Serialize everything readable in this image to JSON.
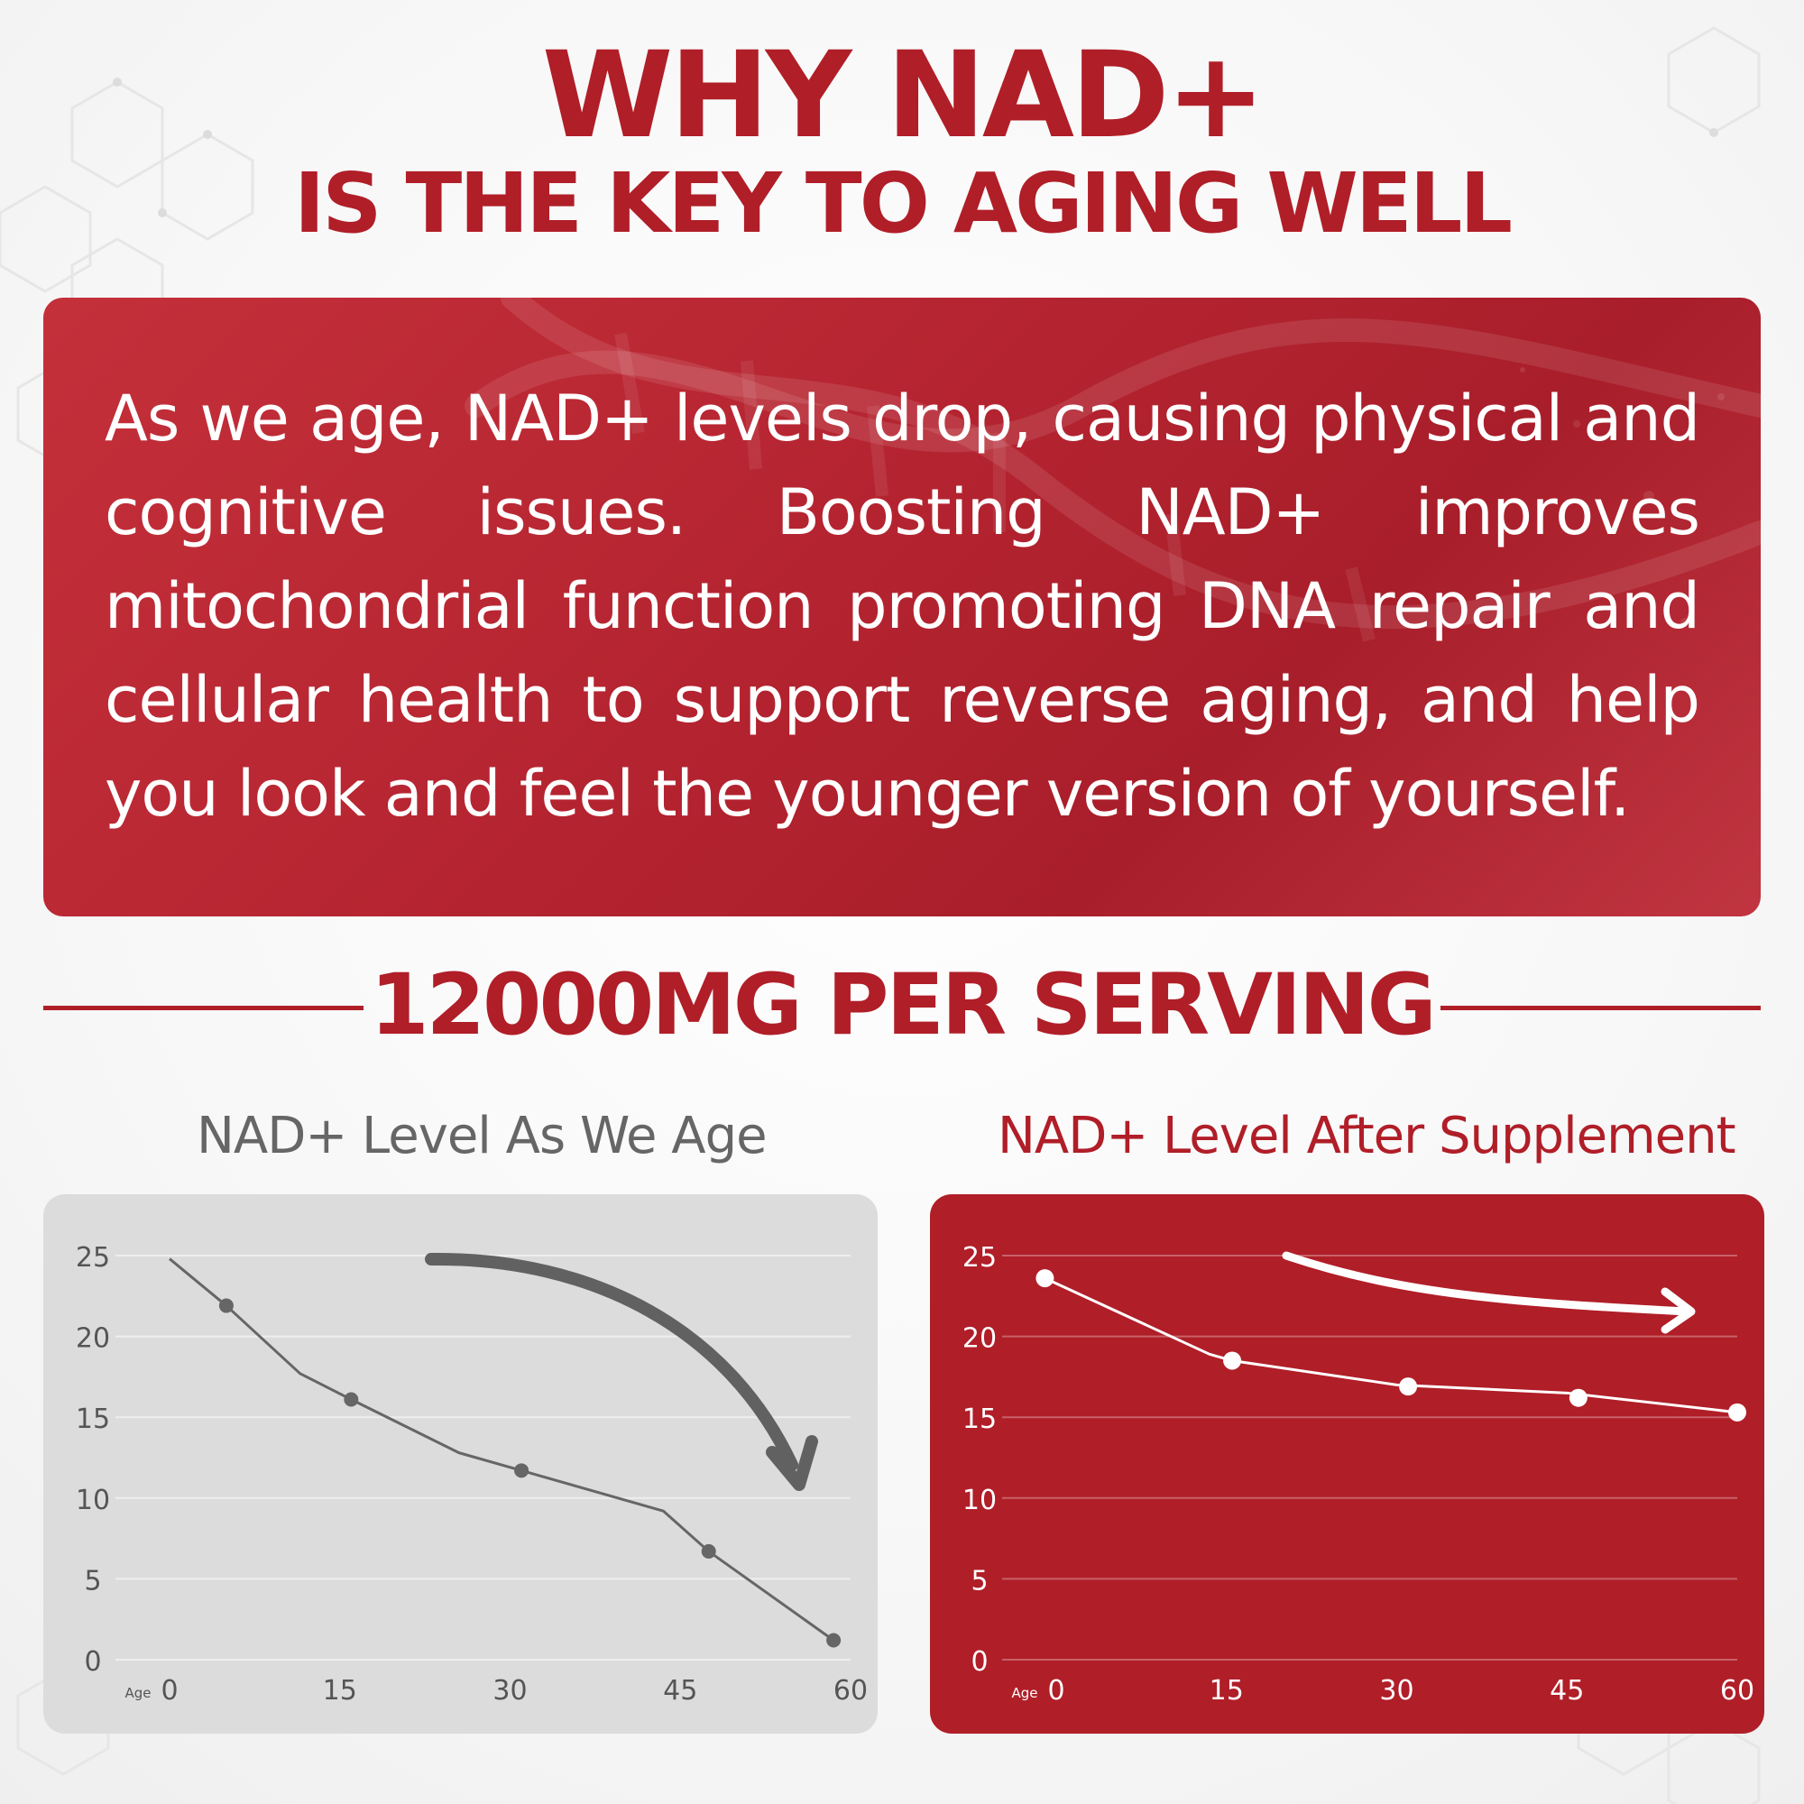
{
  "header": {
    "title": "WHY NAD+",
    "subtitle": "IS THE KEY TO AGING WELL"
  },
  "banner": {
    "text": "As we age, NAD+ levels drop, causing physical and cognitive issues. Boosting NAD+ improves mitochondrial function promoting DNA repair and cellular health to support reverse aging, and help you look and feel the younger version of yourself."
  },
  "serving": {
    "label": "12000MG PER SERVING"
  },
  "colors": {
    "brand_red": "#b01e28",
    "chart_gray_bg": "#dcdcdc",
    "chart_gray_line": "#666666",
    "chart_red_bg": "#b01e28"
  },
  "chart_data": [
    {
      "type": "line",
      "title": "NAD+ Level As We Age",
      "xlabel": "Age",
      "ylabel": "",
      "x_ticks": [
        0,
        15,
        30,
        45,
        60
      ],
      "y_ticks": [
        0,
        5,
        10,
        15,
        20,
        25
      ],
      "xlim": [
        0,
        60
      ],
      "ylim": [
        0,
        25
      ],
      "grid": true,
      "arrow": "curved-down",
      "series": [
        {
          "values": [
            [
              0,
              24.8
            ],
            [
              5,
              21.9
            ],
            [
              11.5,
              17.7
            ],
            [
              16,
              16.1
            ],
            [
              25.5,
              12.8
            ],
            [
              31,
              11.7
            ],
            [
              43.5,
              9.2
            ],
            [
              47.5,
              6.7
            ],
            [
              58.5,
              1.2
            ]
          ],
          "markers": [
            [
              5,
              21.9
            ],
            [
              16,
              16.1
            ],
            [
              31,
              11.7
            ],
            [
              47.5,
              6.7
            ],
            [
              58.5,
              1.2
            ]
          ]
        }
      ]
    },
    {
      "type": "line",
      "title": "NAD+ Level After Supplement",
      "xlabel": "Age",
      "ylabel": "",
      "x_ticks": [
        0,
        15,
        30,
        45,
        60
      ],
      "y_ticks": [
        0,
        5,
        10,
        15,
        20,
        25
      ],
      "xlim": [
        0,
        60
      ],
      "ylim": [
        0,
        25
      ],
      "grid": true,
      "arrow": "slight-down-right",
      "series": [
        {
          "values": [
            [
              -1,
              23.6
            ],
            [
              13.5,
              18.9
            ],
            [
              15.5,
              18.5
            ],
            [
              30,
              17.0
            ],
            [
              45,
              16.5
            ],
            [
              60,
              15.3
            ]
          ],
          "markers": [
            [
              -1,
              23.6
            ],
            [
              15.5,
              18.5
            ],
            [
              31,
              16.9
            ],
            [
              46,
              16.2
            ],
            [
              60,
              15.3
            ]
          ]
        }
      ]
    }
  ]
}
